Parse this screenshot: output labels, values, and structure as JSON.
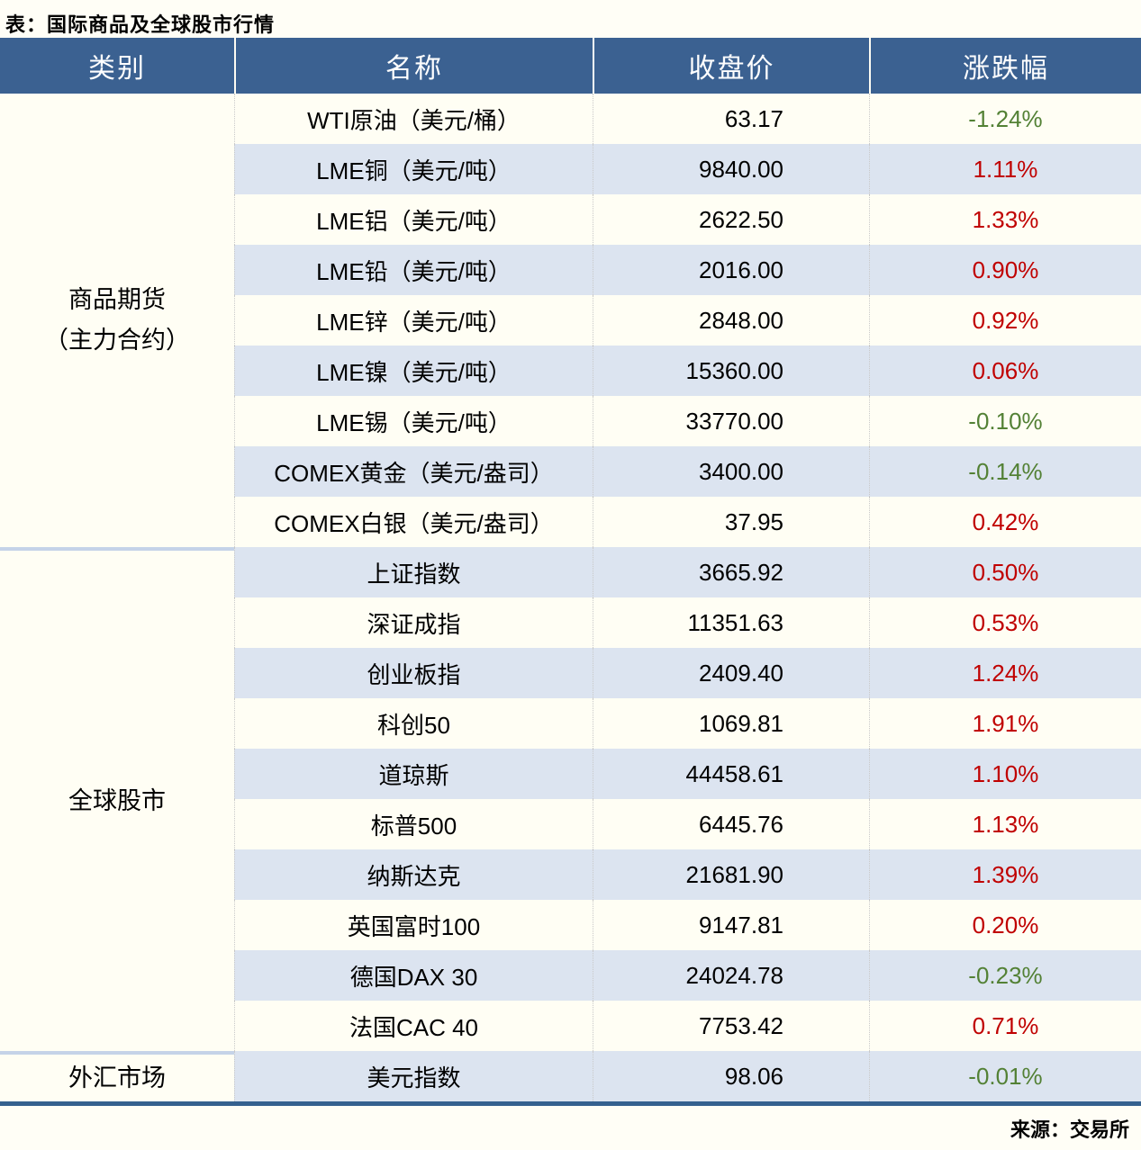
{
  "title": "表：国际商品及全球股市行情",
  "source": "来源：交易所",
  "colors": {
    "page_bg": "#FFFEF6",
    "header_bg": "#3B6191",
    "row_cream": "#FFFEF4",
    "row_blue": "#DCE4F0",
    "up_red": "#C00000",
    "down_green": "#538135",
    "bottom_border": "#35618F",
    "section_divider": "#C5D3E8"
  },
  "table": {
    "headers": [
      "类别",
      "名称",
      "收盘价",
      "涨跌幅"
    ],
    "sections": [
      {
        "category": "商品期货（主力合约）",
        "category_lines": [
          "商品期货",
          "（主力合约）"
        ],
        "rows": [
          {
            "name": "WTI原油（美元/桶）",
            "close": "63.17",
            "change": "-1.24%",
            "direction": "down"
          },
          {
            "name": "LME铜（美元/吨）",
            "close": "9840.00",
            "change": "1.11%",
            "direction": "up"
          },
          {
            "name": "LME铝（美元/吨）",
            "close": "2622.50",
            "change": "1.33%",
            "direction": "up"
          },
          {
            "name": "LME铅（美元/吨）",
            "close": "2016.00",
            "change": "0.90%",
            "direction": "up"
          },
          {
            "name": "LME锌（美元/吨）",
            "close": "2848.00",
            "change": "0.92%",
            "direction": "up"
          },
          {
            "name": "LME镍（美元/吨）",
            "close": "15360.00",
            "change": "0.06%",
            "direction": "up"
          },
          {
            "name": "LME锡（美元/吨）",
            "close": "33770.00",
            "change": "-0.10%",
            "direction": "down"
          },
          {
            "name": "COMEX黄金（美元/盎司）",
            "close": "3400.00",
            "change": "-0.14%",
            "direction": "down"
          },
          {
            "name": "COMEX白银（美元/盎司）",
            "close": "37.95",
            "change": "0.42%",
            "direction": "up"
          }
        ]
      },
      {
        "category": "全球股市",
        "category_lines": [
          "全球股市"
        ],
        "rows": [
          {
            "name": "上证指数",
            "close": "3665.92",
            "change": "0.50%",
            "direction": "up"
          },
          {
            "name": "深证成指",
            "close": "11351.63",
            "change": "0.53%",
            "direction": "up"
          },
          {
            "name": "创业板指",
            "close": "2409.40",
            "change": "1.24%",
            "direction": "up"
          },
          {
            "name": "科创50",
            "close": "1069.81",
            "change": "1.91%",
            "direction": "up"
          },
          {
            "name": "道琼斯",
            "close": "44458.61",
            "change": "1.10%",
            "direction": "up"
          },
          {
            "name": "标普500",
            "close": "6445.76",
            "change": "1.13%",
            "direction": "up"
          },
          {
            "name": "纳斯达克",
            "close": "21681.90",
            "change": "1.39%",
            "direction": "up"
          },
          {
            "name": "英国富时100",
            "close": "9147.81",
            "change": "0.20%",
            "direction": "up"
          },
          {
            "name": "德国DAX 30",
            "close": "24024.78",
            "change": "-0.23%",
            "direction": "down"
          },
          {
            "name": "法国CAC 40",
            "close": "7753.42",
            "change": "0.71%",
            "direction": "up"
          }
        ]
      },
      {
        "category": "外汇市场",
        "category_lines": [
          "外汇市场"
        ],
        "rows": [
          {
            "name": "美元指数",
            "close": "98.06",
            "change": "-0.01%",
            "direction": "down"
          }
        ]
      }
    ]
  },
  "chart_data": {
    "type": "table",
    "title": "表：国际商品及全球股市行情",
    "columns": [
      "类别",
      "名称",
      "收盘价",
      "涨跌幅(%)"
    ],
    "rows": [
      [
        "商品期货（主力合约）",
        "WTI原油（美元/桶）",
        63.17,
        -1.24
      ],
      [
        "商品期货（主力合约）",
        "LME铜（美元/吨）",
        9840.0,
        1.11
      ],
      [
        "商品期货（主力合约）",
        "LME铝（美元/吨）",
        2622.5,
        1.33
      ],
      [
        "商品期货（主力合约）",
        "LME铅（美元/吨）",
        2016.0,
        0.9
      ],
      [
        "商品期货（主力合约）",
        "LME锌（美元/吨）",
        2848.0,
        0.92
      ],
      [
        "商品期货（主力合约）",
        "LME镍（美元/吨）",
        15360.0,
        0.06
      ],
      [
        "商品期货（主力合约）",
        "LME锡（美元/吨）",
        33770.0,
        -0.1
      ],
      [
        "商品期货（主力合约）",
        "COMEX黄金（美元/盎司）",
        3400.0,
        -0.14
      ],
      [
        "商品期货（主力合约）",
        "COMEX白银（美元/盎司）",
        37.95,
        0.42
      ],
      [
        "全球股市",
        "上证指数",
        3665.92,
        0.5
      ],
      [
        "全球股市",
        "深证成指",
        11351.63,
        0.53
      ],
      [
        "全球股市",
        "创业板指",
        2409.4,
        1.24
      ],
      [
        "全球股市",
        "科创50",
        1069.81,
        1.91
      ],
      [
        "全球股市",
        "道琼斯",
        44458.61,
        1.1
      ],
      [
        "全球股市",
        "标普500",
        6445.76,
        1.13
      ],
      [
        "全球股市",
        "纳斯达克",
        21681.9,
        1.39
      ],
      [
        "全球股市",
        "英国富时100",
        9147.81,
        0.2
      ],
      [
        "全球股市",
        "德国DAX 30",
        24024.78,
        -0.23
      ],
      [
        "全球股市",
        "法国CAC 40",
        7753.42,
        0.71
      ],
      [
        "外汇市场",
        "美元指数",
        98.06,
        -0.01
      ]
    ],
    "color_coding": {
      "positive_change": "#C00000",
      "negative_change": "#538135"
    },
    "source": "来源：交易所"
  }
}
